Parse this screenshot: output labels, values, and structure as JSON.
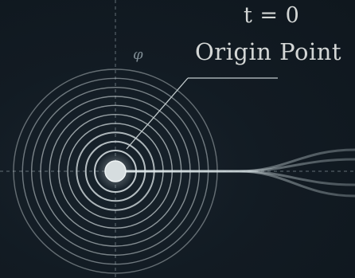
{
  "labels": {
    "time": "t = 0",
    "origin": "Origin Point",
    "axis_symbol": "φ"
  },
  "colors": {
    "background": "#111a22",
    "rings": "#c9d2d5",
    "axis": "#7e8b92",
    "text": "#d3d6d5",
    "beam": "#d6e1e4"
  },
  "diagram": {
    "ring_count": 10,
    "beam_strand_count": 5
  }
}
